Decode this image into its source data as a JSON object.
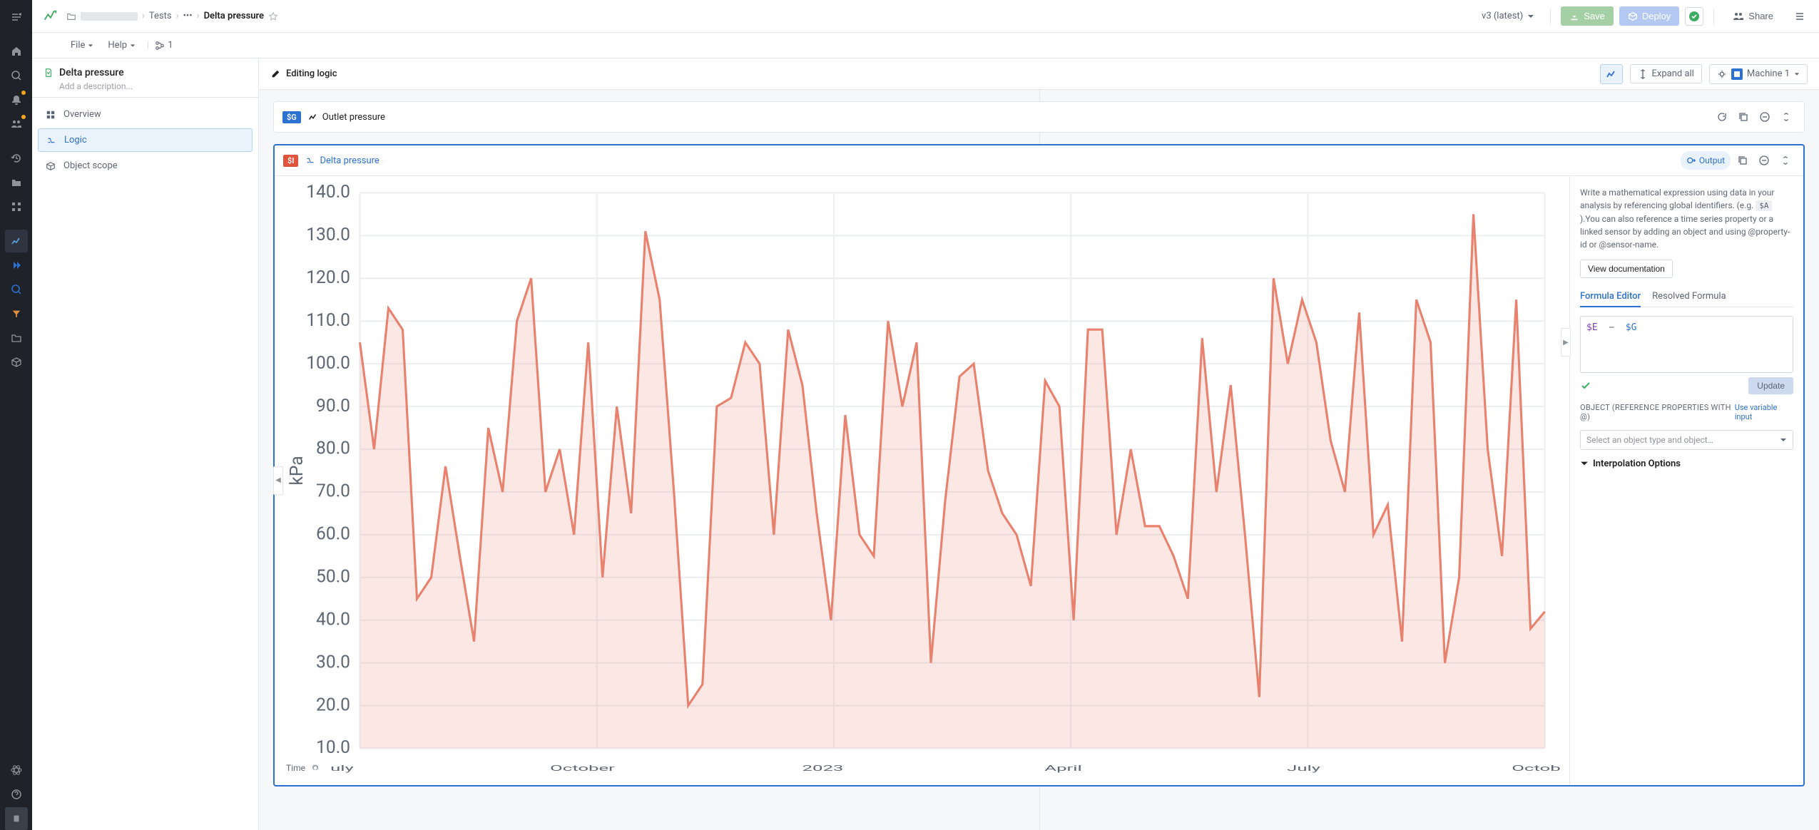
{
  "breadcrumb": {
    "tests": "Tests",
    "current": "Delta pressure"
  },
  "topbar": {
    "version": "v3 (latest)",
    "save": "Save",
    "deploy": "Deploy",
    "share": "Share"
  },
  "menubar": {
    "file": "File",
    "help": "Help",
    "branch_count": "1"
  },
  "left_panel": {
    "title": "Delta pressure",
    "desc_placeholder": "Add a description...",
    "nav": {
      "overview": "Overview",
      "logic": "Logic",
      "scope": "Object scope"
    }
  },
  "content_header": {
    "title": "Editing logic",
    "expand_all": "Expand all",
    "machine": "Machine 1"
  },
  "card_outlet": {
    "badge": "$G",
    "title": "Outlet pressure"
  },
  "card_delta": {
    "badge": "$I",
    "title": "Delta pressure",
    "output": "Output"
  },
  "chart": {
    "type": "area-line",
    "line_color": "#e8826e",
    "fill_color": "rgba(232,130,110,0.18)",
    "grid_color": "#edeff2",
    "axis_color": "#5e6673",
    "background": "#ffffff",
    "y_label": "kPa",
    "y_ticks": [
      10,
      20,
      30,
      40,
      50,
      60,
      70,
      80,
      90,
      100,
      110,
      120,
      130,
      140
    ],
    "x_ticks": [
      "uly",
      "October",
      "2023",
      "April",
      "July",
      "October"
    ],
    "time_label": "Time",
    "values": [
      105,
      80,
      113,
      108,
      45,
      50,
      76,
      55,
      35,
      85,
      70,
      110,
      120,
      70,
      80,
      60,
      105,
      50,
      90,
      65,
      131,
      115,
      70,
      20,
      25,
      90,
      92,
      105,
      100,
      60,
      108,
      95,
      65,
      40,
      88,
      60,
      55,
      110,
      90,
      105,
      30,
      68,
      97,
      100,
      75,
      65,
      60,
      48,
      96,
      90,
      40,
      108,
      108,
      60,
      80,
      62,
      62,
      55,
      45,
      106,
      70,
      95,
      60,
      22,
      120,
      100,
      115,
      105,
      82,
      70,
      112,
      60,
      67,
      35,
      115,
      105,
      30,
      50,
      135,
      80,
      55,
      115,
      38,
      42
    ]
  },
  "inspector": {
    "help_1": "Write a mathematical expression using data in your analysis by referencing global identifiers. (e.g. ",
    "help_badge": "$A",
    "help_2": ").You can also reference a time series property or a linked sensor by adding an object and using @property-id or @sensor-name.",
    "view_docs": "View documentation",
    "tab_formula": "Formula Editor",
    "tab_resolved": "Resolved Formula",
    "formula": {
      "e": "$E",
      "op": "−",
      "g": "$G"
    },
    "update": "Update",
    "object_label": "OBJECT (REFERENCE PROPERTIES WITH @)",
    "use_var": "Use variable input",
    "object_placeholder": "Select an object type and object…",
    "interp": "Interpolation Options"
  }
}
